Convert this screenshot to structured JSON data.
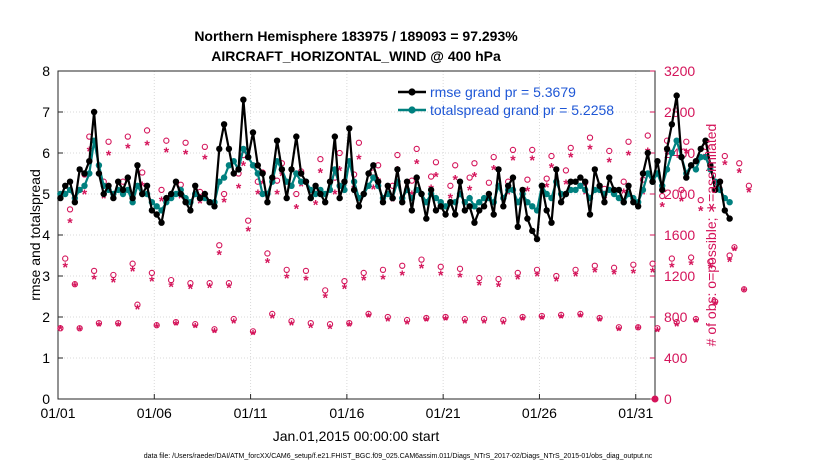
{
  "chart_data": {
    "type": "line",
    "title": [
      "Northern Hemisphere 183975 / 189093 = 97.293%",
      "AIRCRAFT_HORIZONTAL_WIND @ 400 hPa"
    ],
    "xlabel": "Jan.01,2015 00:00:00 start",
    "ylabel_left": "rmse and totalspread",
    "ylabel_right": "# of obs: o=possible; ∗=assimilated",
    "footer": "data file: /Users/raeder/DAI/ATM_forcXX/CAM6_setup/f.e21.FHIST_BGC.f09_025.CAM6assim.011/Diags_NTrS_2017-02/Diags_NTrS_2015-01/obs_diag_output.nc",
    "x_ticks": [
      {
        "v": 1,
        "label": "01/01"
      },
      {
        "v": 6,
        "label": "01/06"
      },
      {
        "v": 11,
        "label": "01/11"
      },
      {
        "v": 16,
        "label": "01/16"
      },
      {
        "v": 21,
        "label": "01/21"
      },
      {
        "v": 26,
        "label": "01/26"
      },
      {
        "v": 31,
        "label": "01/31"
      }
    ],
    "xlim": [
      1,
      32
    ],
    "ylim_left": [
      0,
      8
    ],
    "left_ticks": [
      "0",
      "1",
      "2",
      "3",
      "4",
      "5",
      "6",
      "7",
      "8"
    ],
    "ylim_right": [
      0,
      3200
    ],
    "right_ticks": [
      "0",
      "400",
      "800",
      "1200",
      "1600",
      "2000",
      "2400",
      "2800",
      "3200"
    ],
    "legend": [
      {
        "name": "rmse grand pr = 5.3679",
        "color": "#000000"
      },
      {
        "name": "totalspread grand pr = 5.2258",
        "color": "#008080"
      }
    ],
    "colors": {
      "rmse": "#000000",
      "spread": "#00807f",
      "obs": "#d4145a"
    },
    "samples_per_day": 4,
    "series": [
      {
        "name": "rmse",
        "values": [
          4.9,
          5.2,
          5.3,
          4.8,
          5.6,
          5.5,
          5.8,
          7.0,
          5.5,
          5.0,
          5.2,
          4.9,
          5.3,
          5.1,
          5.4,
          4.9,
          5.7,
          5.0,
          5.2,
          4.6,
          4.5,
          4.3,
          4.9,
          5.0,
          5.3,
          5.0,
          4.8,
          4.6,
          5.2,
          4.9,
          5.0,
          4.8,
          4.7,
          6.1,
          6.7,
          6.1,
          5.5,
          5.6,
          7.3,
          5.9,
          6.5,
          5.7,
          5.5,
          4.8,
          5.4,
          6.3,
          5.6,
          4.9,
          5.6,
          6.4,
          5.5,
          5.3,
          4.9,
          5.2,
          5.0,
          4.8,
          5.3,
          6.4,
          4.9,
          5.3,
          6.6,
          5.1,
          4.7,
          5.0,
          5.5,
          5.7,
          5.3,
          4.8,
          5.2,
          4.9,
          5.6,
          4.8,
          5.3,
          4.6,
          5.4,
          5.0,
          4.4,
          5.1,
          4.6,
          4.7,
          4.5,
          4.8,
          4.5,
          5.3,
          4.6,
          4.7,
          4.3,
          4.6,
          4.7,
          5.0,
          4.5,
          5.6,
          4.7,
          5.2,
          5.4,
          4.2,
          5.1,
          4.4,
          4.1,
          3.9,
          5.2,
          4.6,
          4.3,
          5.6,
          4.8,
          5.0,
          5.3,
          5.3,
          5.4,
          5.3,
          4.5,
          5.6,
          5.2,
          4.8,
          5.4,
          5.1,
          5.1,
          4.8,
          5.2,
          4.8,
          4.7,
          5.5,
          6.0,
          5.3,
          5.8,
          5.1,
          6.1,
          6.7,
          7.4,
          5.9,
          5.4,
          5.7,
          5.8,
          6.1,
          6.3,
          5.7,
          5.1,
          5.3,
          4.6,
          4.4
        ]
      },
      {
        "name": "totalspread",
        "values": [
          5.0,
          5.0,
          5.1,
          4.9,
          5.1,
          5.2,
          5.5,
          6.3,
          5.7,
          5.2,
          5.1,
          5.0,
          5.1,
          5.0,
          5.1,
          4.8,
          5.2,
          5.0,
          5.0,
          4.8,
          4.7,
          4.6,
          4.8,
          4.9,
          5.0,
          5.1,
          4.9,
          4.8,
          5.0,
          4.9,
          4.9,
          4.8,
          4.8,
          5.3,
          5.4,
          5.7,
          5.8,
          5.6,
          6.1,
          5.9,
          5.7,
          5.5,
          5.0,
          5.0,
          5.3,
          5.8,
          5.6,
          5.3,
          5.2,
          5.5,
          5.3,
          5.3,
          5.1,
          5.0,
          5.1,
          5.0,
          5.1,
          5.6,
          5.2,
          5.1,
          5.8,
          5.3,
          4.9,
          5.0,
          5.2,
          5.4,
          5.2,
          4.9,
          5.0,
          4.9,
          5.3,
          4.9,
          5.1,
          4.9,
          5.1,
          5.0,
          4.8,
          5.0,
          4.9,
          4.8,
          4.7,
          4.8,
          4.8,
          5.0,
          4.8,
          4.9,
          4.7,
          4.8,
          4.9,
          4.9,
          4.8,
          5.2,
          4.9,
          5.1,
          5.1,
          4.8,
          5.0,
          4.8,
          4.7,
          4.6,
          5.2,
          5.0,
          4.9,
          5.3,
          5.0,
          5.0,
          5.1,
          5.1,
          5.2,
          5.1,
          4.9,
          5.1,
          5.1,
          5.0,
          5.1,
          5.0,
          4.9,
          4.8,
          5.0,
          4.9,
          4.8,
          5.1,
          5.5,
          5.3,
          5.5,
          5.2,
          5.6,
          6.0,
          6.3,
          5.9,
          5.5,
          5.7,
          5.6,
          5.9,
          5.9,
          5.6,
          5.3,
          5.1,
          4.9,
          4.8
        ]
      },
      {
        "name": "obs_possible",
        "values": [
          690,
          1370,
          1850,
          1120,
          690,
          2190,
          2560,
          1250,
          740,
          2120,
          2510,
          1210,
          740,
          2120,
          2560,
          1320,
          920,
          2210,
          2620,
          1230,
          720,
          2040,
          2520,
          1160,
          750,
          2090,
          2500,
          1130,
          730,
          2020,
          2460,
          1130,
          680,
          1500,
          2000,
          1130,
          780,
          2200,
          2380,
          1740,
          660,
          2120,
          2210,
          1420,
          830,
          2130,
          2300,
          1260,
          760,
          2000,
          2220,
          1250,
          740,
          2050,
          2340,
          1060,
          730,
          2160,
          2400,
          1150,
          740,
          2190,
          2500,
          1230,
          830,
          2210,
          2280,
          1260,
          800,
          2080,
          2380,
          1300,
          770,
          2130,
          2440,
          1360,
          790,
          2170,
          2310,
          1290,
          800,
          2080,
          2280,
          1270,
          780,
          2160,
          2300,
          1180,
          780,
          2110,
          2360,
          1170,
          770,
          2120,
          2430,
          1230,
          800,
          2140,
          2430,
          1260,
          810,
          2150,
          2370,
          1200,
          820,
          2230,
          2450,
          1260,
          830,
          2110,
          2550,
          1300,
          790,
          2050,
          2420,
          1280,
          700,
          2120,
          2510,
          1310,
          700,
          2140,
          2570,
          1320,
          690,
          1980,
          2520,
          1370,
          750,
          2040,
          2510,
          1380,
          780,
          1940,
          2460,
          1340,
          950,
          2120,
          2370,
          1400,
          1480,
          2300,
          1070,
          2080
        ]
      },
      {
        "name": "obs_assimilated",
        "values": [
          680,
          1290,
          1720,
          1100,
          670,
          2000,
          2420,
          1170,
          710,
          1960,
          2380,
          1140,
          710,
          2000,
          2450,
          1250,
          880,
          2080,
          2480,
          1150,
          700,
          1930,
          2410,
          1100,
          720,
          1960,
          2390,
          1080,
          700,
          1910,
          2340,
          1090,
          650,
          1410,
          1920,
          1090,
          740,
          2060,
          2280,
          1640,
          630,
          2000,
          2100,
          1330,
          790,
          2000,
          2180,
          1180,
          720,
          1860,
          2080,
          1160,
          700,
          1900,
          2210,
          990,
          690,
          2000,
          2230,
          1080,
          710,
          2050,
          2340,
          1160,
          800,
          2050,
          2120,
          1170,
          760,
          1930,
          2230,
          1210,
          730,
          1990,
          2300,
          1280,
          760,
          2050,
          2170,
          1210,
          770,
          1960,
          2140,
          1190,
          740,
          2040,
          2170,
          1110,
          740,
          1980,
          2240,
          1100,
          730,
          2000,
          2330,
          1170,
          770,
          2030,
          2330,
          1200,
          780,
          2070,
          2260,
          1150,
          790,
          2100,
          2360,
          1200,
          800,
          2000,
          2440,
          1240,
          760,
          1940,
          2310,
          1220,
          670,
          2010,
          2380,
          1230,
          680,
          2000,
          2410,
          1240,
          660,
          1880,
          2390,
          1290,
          710,
          1930,
          2400,
          1310,
          750,
          1840,
          2360,
          1280,
          920,
          2040,
          2290,
          1340,
          1450,
          2210,
          1050,
          2020
        ]
      }
    ]
  }
}
